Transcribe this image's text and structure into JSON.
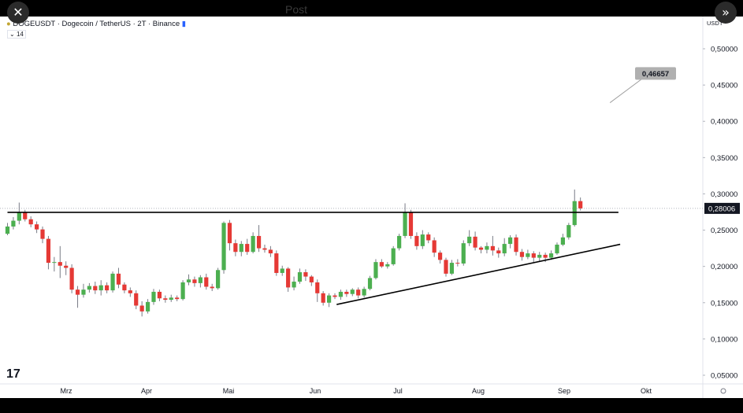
{
  "window": {
    "close_icon": "close-icon",
    "expand_icon": "chevron-double-right-icon",
    "ghost_title": "Post"
  },
  "header": {
    "symbol_line": "DOGEUSDT · Dogecoin / TetherUS · 2T · Binance",
    "indicator_label": "14",
    "currency": "USDT",
    "flag_color": "#2962ff"
  },
  "logo": "17",
  "chart_data": {
    "type": "candlestick",
    "price_axis": {
      "ticks": [
        "0,50000",
        "0,45000",
        "0,40000",
        "0,35000",
        "0,30000",
        "0,25000",
        "0,20000",
        "0,15000",
        "0,10000",
        "0,05000"
      ],
      "range": [
        0.04,
        0.535
      ]
    },
    "time_axis": {
      "ticks": [
        "Mrz",
        "Apr",
        "Mai",
        "Jun",
        "Jul",
        "Aug",
        "Sep",
        "Okt"
      ]
    },
    "last_price_label": "0,28006",
    "target_label": "0,46657",
    "colors": {
      "up": "#4caf50",
      "down": "#e53935",
      "wick": "#787b86",
      "line": "#000000"
    },
    "candles": [
      [
        0.245,
        0.255,
        0.26,
        0.243
      ],
      [
        0.255,
        0.263,
        0.268,
        0.251
      ],
      [
        0.263,
        0.275,
        0.288,
        0.258
      ],
      [
        0.275,
        0.265,
        0.278,
        0.262
      ],
      [
        0.265,
        0.258,
        0.269,
        0.254
      ],
      [
        0.258,
        0.251,
        0.262,
        0.246
      ],
      [
        0.251,
        0.238,
        0.255,
        0.232
      ],
      [
        0.238,
        0.205,
        0.242,
        0.196
      ],
      [
        0.205,
        0.206,
        0.213,
        0.193
      ],
      [
        0.206,
        0.201,
        0.228,
        0.184
      ],
      [
        0.201,
        0.198,
        0.207,
        0.188
      ],
      [
        0.198,
        0.168,
        0.203,
        0.163
      ],
      [
        0.168,
        0.161,
        0.173,
        0.143
      ],
      [
        0.161,
        0.168,
        0.176,
        0.157
      ],
      [
        0.168,
        0.173,
        0.177,
        0.164
      ],
      [
        0.173,
        0.167,
        0.179,
        0.162
      ],
      [
        0.167,
        0.174,
        0.181,
        0.16
      ],
      [
        0.174,
        0.167,
        0.178,
        0.163
      ],
      [
        0.167,
        0.19,
        0.193,
        0.164
      ],
      [
        0.19,
        0.175,
        0.198,
        0.17
      ],
      [
        0.175,
        0.167,
        0.178,
        0.163
      ],
      [
        0.167,
        0.163,
        0.171,
        0.158
      ],
      [
        0.163,
        0.146,
        0.167,
        0.141
      ],
      [
        0.146,
        0.138,
        0.152,
        0.131
      ],
      [
        0.138,
        0.151,
        0.155,
        0.135
      ],
      [
        0.151,
        0.165,
        0.169,
        0.147
      ],
      [
        0.165,
        0.156,
        0.168,
        0.152
      ],
      [
        0.156,
        0.154,
        0.16,
        0.15
      ],
      [
        0.154,
        0.157,
        0.161,
        0.151
      ],
      [
        0.157,
        0.155,
        0.16,
        0.152
      ],
      [
        0.155,
        0.178,
        0.181,
        0.153
      ],
      [
        0.178,
        0.182,
        0.189,
        0.174
      ],
      [
        0.182,
        0.177,
        0.186,
        0.172
      ],
      [
        0.177,
        0.185,
        0.188,
        0.171
      ],
      [
        0.185,
        0.172,
        0.19,
        0.168
      ],
      [
        0.172,
        0.17,
        0.176,
        0.166
      ],
      [
        0.17,
        0.195,
        0.198,
        0.168
      ],
      [
        0.195,
        0.26,
        0.262,
        0.19
      ],
      [
        0.26,
        0.232,
        0.264,
        0.222
      ],
      [
        0.232,
        0.22,
        0.237,
        0.214
      ],
      [
        0.22,
        0.231,
        0.235,
        0.214
      ],
      [
        0.231,
        0.22,
        0.238,
        0.216
      ],
      [
        0.22,
        0.242,
        0.247,
        0.218
      ],
      [
        0.242,
        0.225,
        0.257,
        0.22
      ],
      [
        0.225,
        0.223,
        0.23,
        0.219
      ],
      [
        0.223,
        0.218,
        0.228,
        0.213
      ],
      [
        0.218,
        0.191,
        0.222,
        0.187
      ],
      [
        0.191,
        0.197,
        0.201,
        0.187
      ],
      [
        0.197,
        0.171,
        0.199,
        0.165
      ],
      [
        0.171,
        0.179,
        0.186,
        0.167
      ],
      [
        0.179,
        0.192,
        0.197,
        0.176
      ],
      [
        0.192,
        0.186,
        0.196,
        0.18
      ],
      [
        0.186,
        0.178,
        0.188,
        0.173
      ],
      [
        0.178,
        0.163,
        0.182,
        0.151
      ],
      [
        0.163,
        0.15,
        0.166,
        0.146
      ],
      [
        0.15,
        0.16,
        0.163,
        0.144
      ],
      [
        0.16,
        0.158,
        0.163,
        0.155
      ],
      [
        0.158,
        0.165,
        0.168,
        0.154
      ],
      [
        0.165,
        0.162,
        0.168,
        0.158
      ],
      [
        0.162,
        0.168,
        0.17,
        0.159
      ],
      [
        0.168,
        0.16,
        0.171,
        0.156
      ],
      [
        0.16,
        0.169,
        0.172,
        0.157
      ],
      [
        0.169,
        0.184,
        0.187,
        0.167
      ],
      [
        0.184,
        0.206,
        0.21,
        0.182
      ],
      [
        0.206,
        0.2,
        0.21,
        0.198
      ],
      [
        0.2,
        0.203,
        0.206,
        0.197
      ],
      [
        0.203,
        0.225,
        0.228,
        0.201
      ],
      [
        0.225,
        0.242,
        0.245,
        0.222
      ],
      [
        0.242,
        0.275,
        0.287,
        0.239
      ],
      [
        0.275,
        0.242,
        0.278,
        0.238
      ],
      [
        0.242,
        0.228,
        0.247,
        0.223
      ],
      [
        0.228,
        0.244,
        0.25,
        0.224
      ],
      [
        0.244,
        0.236,
        0.247,
        0.232
      ],
      [
        0.236,
        0.219,
        0.24,
        0.213
      ],
      [
        0.219,
        0.209,
        0.222,
        0.204
      ],
      [
        0.209,
        0.19,
        0.212,
        0.186
      ],
      [
        0.19,
        0.205,
        0.209,
        0.188
      ],
      [
        0.205,
        0.204,
        0.21,
        0.2
      ],
      [
        0.204,
        0.232,
        0.236,
        0.201
      ],
      [
        0.232,
        0.241,
        0.25,
        0.228
      ],
      [
        0.241,
        0.226,
        0.248,
        0.222
      ],
      [
        0.226,
        0.223,
        0.228,
        0.218
      ],
      [
        0.223,
        0.228,
        0.233,
        0.218
      ],
      [
        0.228,
        0.222,
        0.242,
        0.215
      ],
      [
        0.222,
        0.218,
        0.226,
        0.212
      ],
      [
        0.218,
        0.231,
        0.239,
        0.214
      ],
      [
        0.231,
        0.24,
        0.243,
        0.225
      ],
      [
        0.24,
        0.22,
        0.244,
        0.215
      ],
      [
        0.22,
        0.213,
        0.224,
        0.208
      ],
      [
        0.213,
        0.218,
        0.223,
        0.21
      ],
      [
        0.218,
        0.212,
        0.221,
        0.206
      ],
      [
        0.212,
        0.216,
        0.22,
        0.207
      ],
      [
        0.216,
        0.212,
        0.219,
        0.206
      ],
      [
        0.212,
        0.218,
        0.222,
        0.209
      ],
      [
        0.218,
        0.23,
        0.233,
        0.216
      ],
      [
        0.23,
        0.24,
        0.245,
        0.228
      ],
      [
        0.24,
        0.257,
        0.26,
        0.237
      ],
      [
        0.257,
        0.29,
        0.306,
        0.255
      ],
      [
        0.29,
        0.28,
        0.295,
        0.277
      ]
    ],
    "lines": [
      {
        "name": "resistance",
        "from": [
          0,
          0.2745
        ],
        "to": [
          104.5,
          0.2745
        ]
      },
      {
        "name": "support",
        "from": [
          56.3,
          0.1475
        ],
        "to": [
          104.8,
          0.2305
        ]
      }
    ],
    "target_arrow_to": [
      104,
      0.43
    ]
  }
}
